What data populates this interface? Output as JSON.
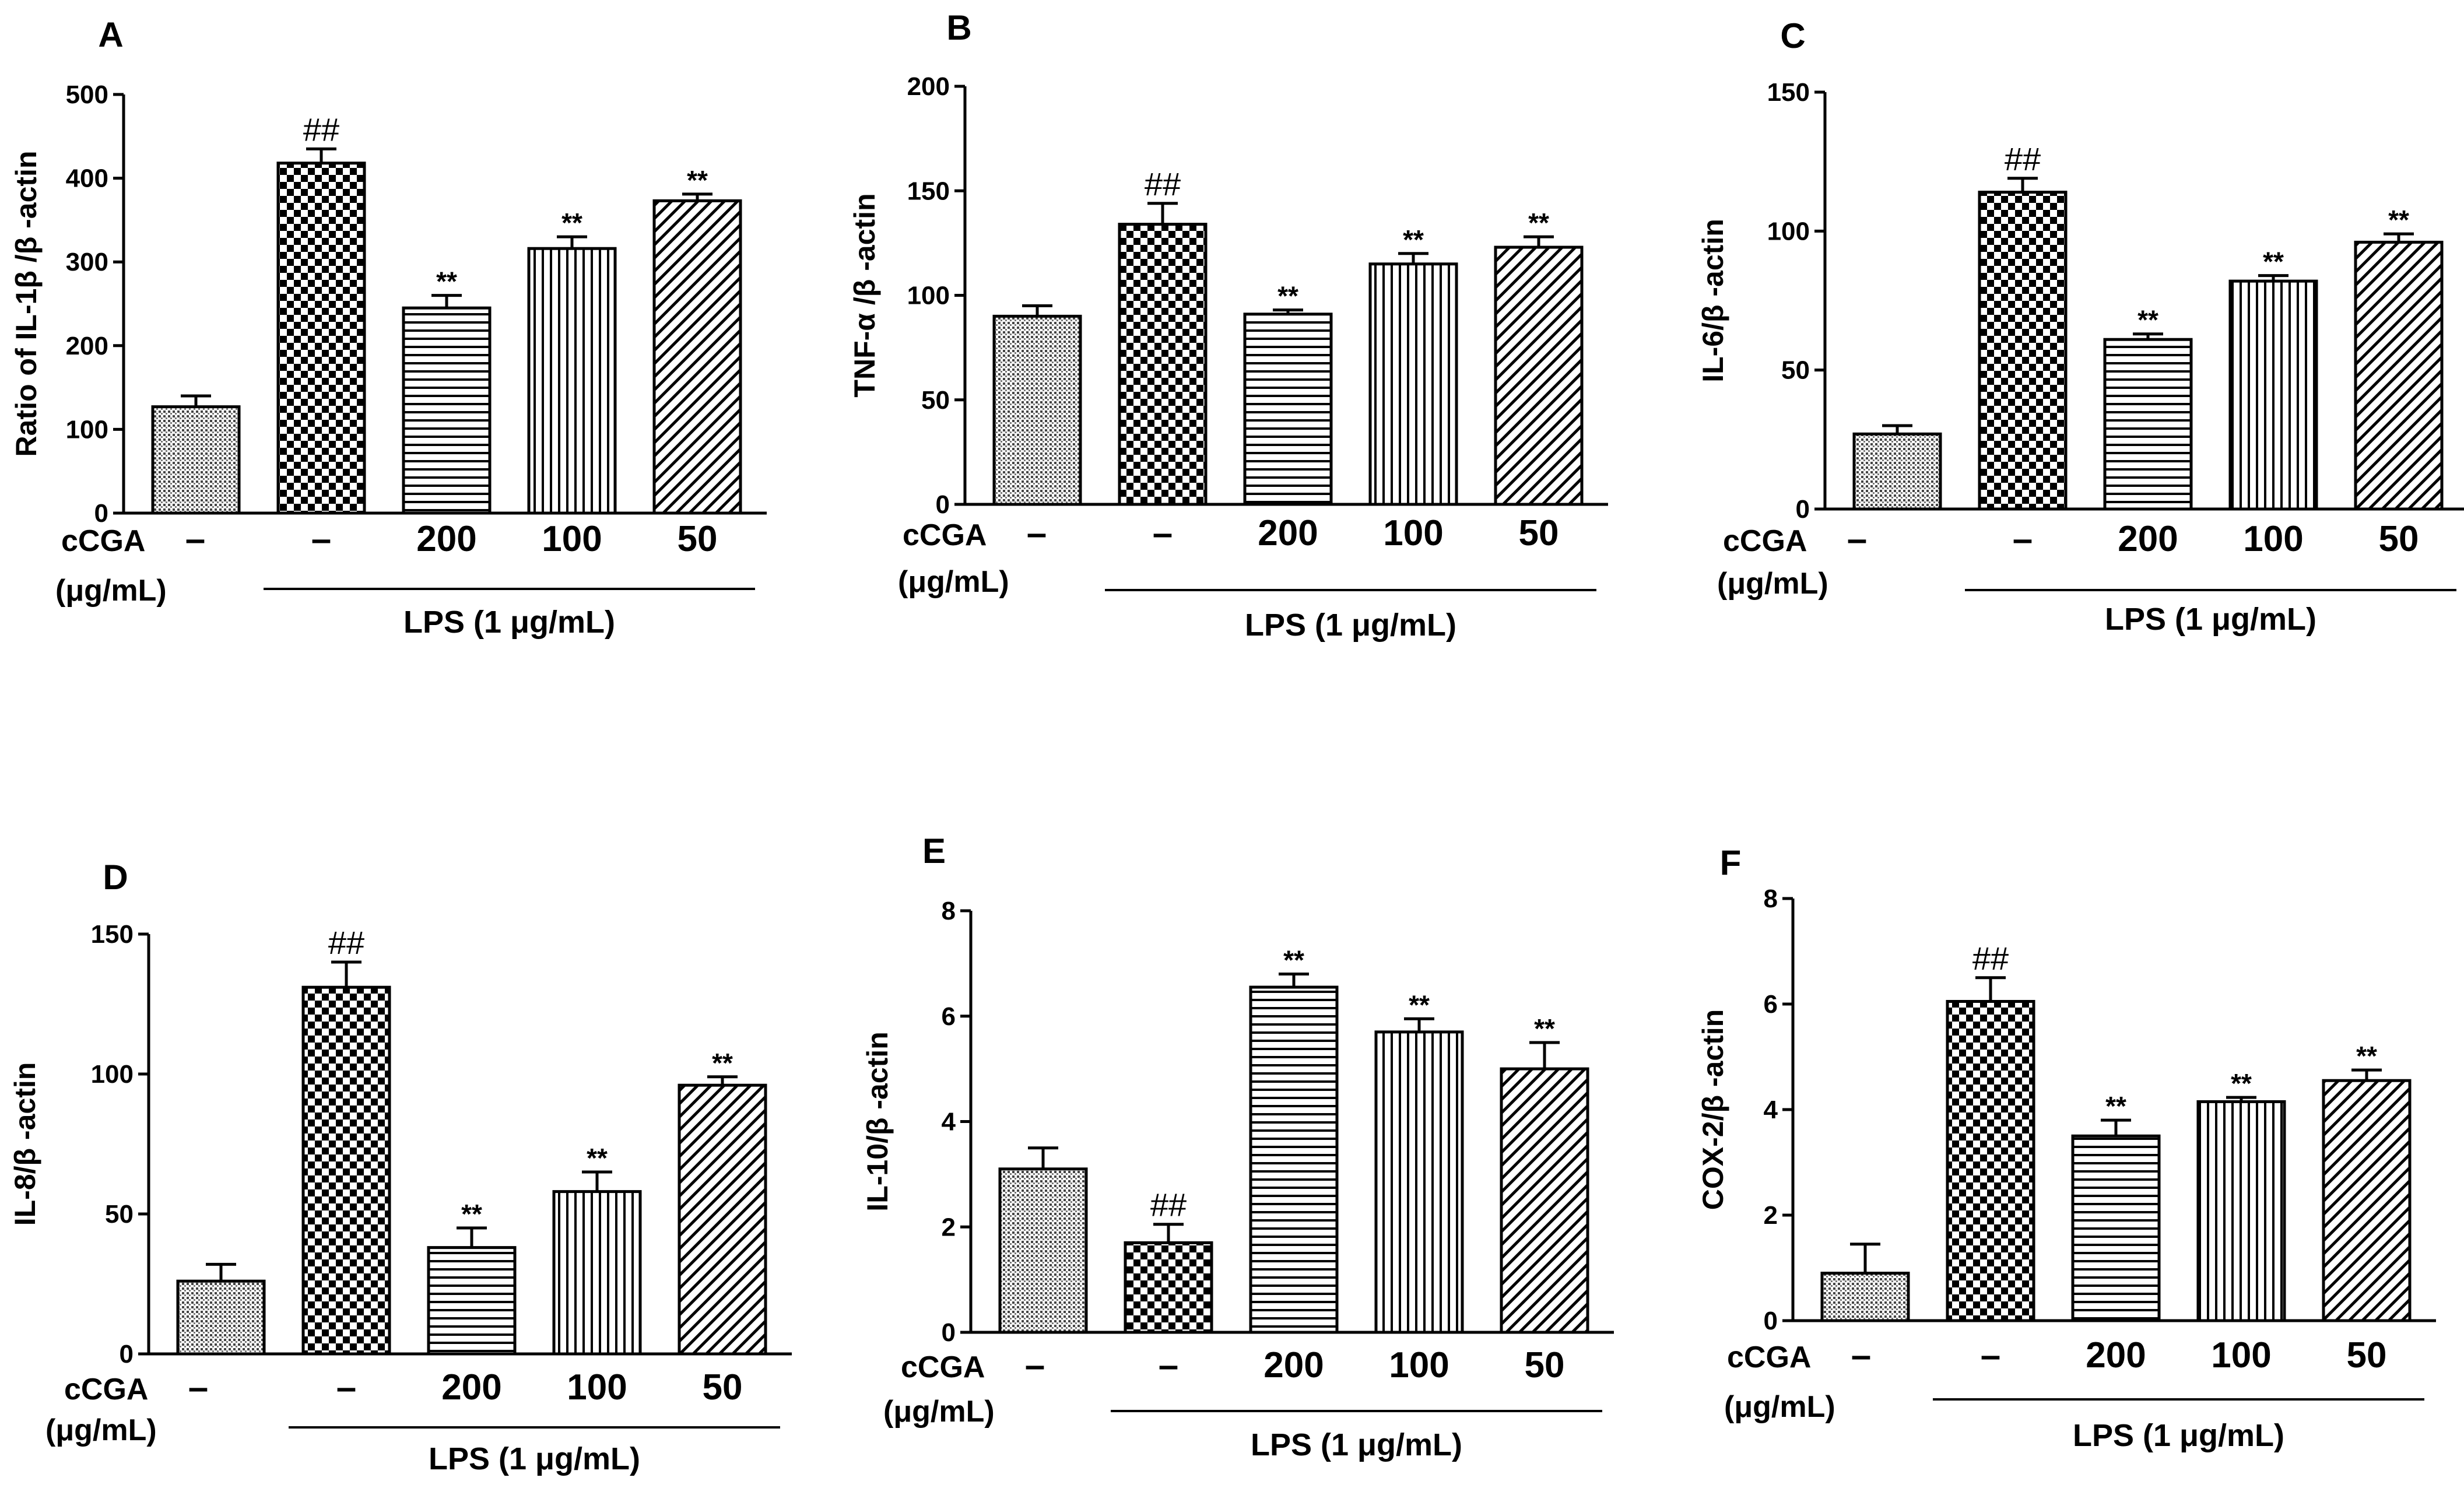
{
  "chart_data": [
    {
      "type": "bar",
      "panel": "A",
      "ylabel": "Ratio of IL-1β /β -actin",
      "ylim": [
        0,
        500
      ],
      "yticks": [
        0,
        100,
        200,
        300,
        400,
        500
      ],
      "categories": [
        "–",
        "–",
        "200",
        "100",
        "50"
      ],
      "values": [
        127,
        418,
        245,
        316,
        373
      ],
      "errors": [
        13,
        17,
        15,
        14,
        8
      ],
      "significance": [
        "",
        "##",
        "**",
        "**",
        "**"
      ],
      "patterns": [
        "dots",
        "checker",
        "hlines",
        "vlines",
        "diag"
      ],
      "row_label_1": "cCGA",
      "row_label_2": "(μg/mL)",
      "treatment_label": "LPS (1 μg/mL)"
    },
    {
      "type": "bar",
      "panel": "B",
      "ylabel": "TNF-α /β -actin",
      "ylim": [
        0,
        200
      ],
      "yticks": [
        0,
        50,
        100,
        150,
        200
      ],
      "categories": [
        "–",
        "–",
        "200",
        "100",
        "50"
      ],
      "values": [
        90,
        134,
        91,
        115,
        123
      ],
      "errors": [
        5,
        10,
        2,
        5,
        5
      ],
      "significance": [
        "",
        "##",
        "**",
        "**",
        "**"
      ],
      "patterns": [
        "dots",
        "checker",
        "hlines",
        "vlines",
        "diag"
      ],
      "row_label_1": "cCGA",
      "row_label_2": "(μg/mL)",
      "treatment_label": "LPS (1 μg/mL)"
    },
    {
      "type": "bar",
      "panel": "C",
      "ylabel": "IL-6/β -actin",
      "ylim": [
        0,
        150
      ],
      "yticks": [
        0,
        50,
        100,
        150
      ],
      "categories": [
        "–",
        "–",
        "200",
        "100",
        "50"
      ],
      "values": [
        27,
        114,
        61,
        82,
        96
      ],
      "errors": [
        3,
        5,
        2,
        2,
        3
      ],
      "significance": [
        "",
        "##",
        "**",
        "**",
        "**"
      ],
      "patterns": [
        "dots",
        "checker",
        "hlines",
        "vlines",
        "diag"
      ],
      "row_label_1": "cCGA",
      "row_label_2": "(μg/mL)",
      "treatment_label": "LPS (1 μg/mL)"
    },
    {
      "type": "bar",
      "panel": "D",
      "ylabel": "IL-8/β -actin",
      "ylim": [
        0,
        150
      ],
      "yticks": [
        0,
        50,
        100,
        150
      ],
      "categories": [
        "–",
        "–",
        "200",
        "100",
        "50"
      ],
      "values": [
        26,
        131,
        38,
        58,
        96
      ],
      "errors": [
        6,
        9,
        7,
        7,
        3
      ],
      "significance": [
        "",
        "##",
        "**",
        "**",
        "**"
      ],
      "patterns": [
        "dots",
        "checker",
        "hlines",
        "vlines",
        "diag"
      ],
      "row_label_1": "cCGA",
      "row_label_2": "(μg/mL)",
      "treatment_label": "LPS (1 μg/mL)"
    },
    {
      "type": "bar",
      "panel": "E",
      "ylabel": "IL-10/β -actin",
      "ylim": [
        0,
        8
      ],
      "yticks": [
        0,
        2,
        4,
        6,
        8
      ],
      "categories": [
        "–",
        "–",
        "200",
        "100",
        "50"
      ],
      "values": [
        3.1,
        1.7,
        6.55,
        5.7,
        5.0
      ],
      "errors": [
        0.4,
        0.35,
        0.25,
        0.25,
        0.5
      ],
      "significance": [
        "",
        "##",
        "**",
        "**",
        "**"
      ],
      "sig_below": [
        false,
        true,
        false,
        false,
        false
      ],
      "patterns": [
        "dots",
        "checker",
        "hlines",
        "vlines",
        "diag"
      ],
      "row_label_1": "cCGA",
      "row_label_2": "(μg/mL)",
      "treatment_label": "LPS (1 μg/mL)"
    },
    {
      "type": "bar",
      "panel": "F",
      "ylabel": "COX-2/β -actin",
      "ylim": [
        0,
        8
      ],
      "yticks": [
        0,
        2,
        4,
        6,
        8
      ],
      "categories": [
        "–",
        "–",
        "200",
        "100",
        "50"
      ],
      "values": [
        0.9,
        6.05,
        3.5,
        4.15,
        4.55
      ],
      "errors": [
        0.55,
        0.45,
        0.3,
        0.08,
        0.2
      ],
      "significance": [
        "",
        "##",
        "**",
        "**",
        "**"
      ],
      "patterns": [
        "dots",
        "checker",
        "hlines",
        "vlines",
        "diag"
      ],
      "row_label_1": "cCGA",
      "row_label_2": "(μg/mL)",
      "treatment_label": "LPS (1 μg/mL)"
    }
  ]
}
